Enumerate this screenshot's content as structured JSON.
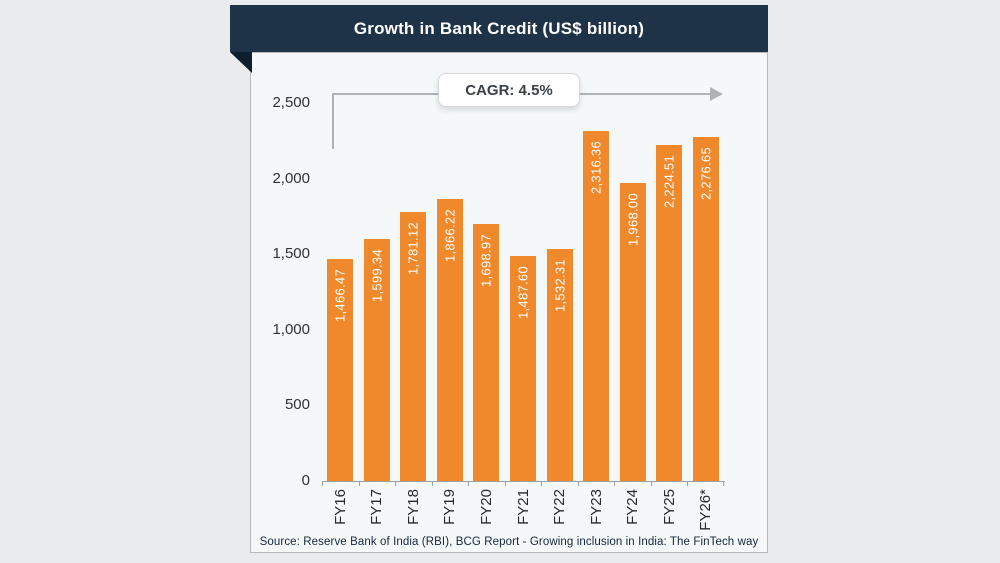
{
  "header": {
    "title": "Growth in Bank Credit (US$ billion)"
  },
  "annotation": {
    "cagr_label": "CAGR: 4.5%"
  },
  "chart_data": {
    "type": "bar",
    "title": "Growth in Bank Credit (US$ billion)",
    "categories": [
      "FY16",
      "FY17",
      "FY18",
      "FY19",
      "FY20",
      "FY21",
      "FY22",
      "FY23",
      "FY24",
      "FY25",
      "FY26*"
    ],
    "values": [
      1466.47,
      1599.34,
      1781.12,
      1866.22,
      1698.97,
      1487.6,
      1532.31,
      2316.36,
      1968.0,
      2224.51,
      2276.65
    ],
    "value_labels": [
      "1,466.47",
      "1,599.34",
      "1,781.12",
      "1,866.22",
      "1,698.97",
      "1,487.60",
      "1,532.31",
      "2,316.36",
      "1,968.00",
      "2,224.51",
      "2,276.65"
    ],
    "xlabel": "",
    "ylabel": "",
    "ylim": [
      0,
      2500
    ],
    "y_ticks": [
      0,
      500,
      1000,
      1500,
      2000,
      2500
    ],
    "y_tick_labels": [
      "0",
      "500",
      "1,000",
      "1,500",
      "2,000",
      "2,500"
    ],
    "grid": false,
    "legend_position": "none",
    "annotation": "CAGR: 4.5%",
    "bar_color": "#f0892c",
    "value_label_color": "#ffffff"
  },
  "footer": {
    "source": "Source: Reserve Bank of India (RBI), BCG Report - Growing inclusion in India: The FinTech way"
  },
  "colors": {
    "page_background": "#e9ebed",
    "panel_background": "#f5f8f9",
    "ribbon_background": "#1f3348",
    "ribbon_fold": "#0f1e2d",
    "annotation_line": "#aeb3b7",
    "axis_line": "#9aa0a5"
  }
}
